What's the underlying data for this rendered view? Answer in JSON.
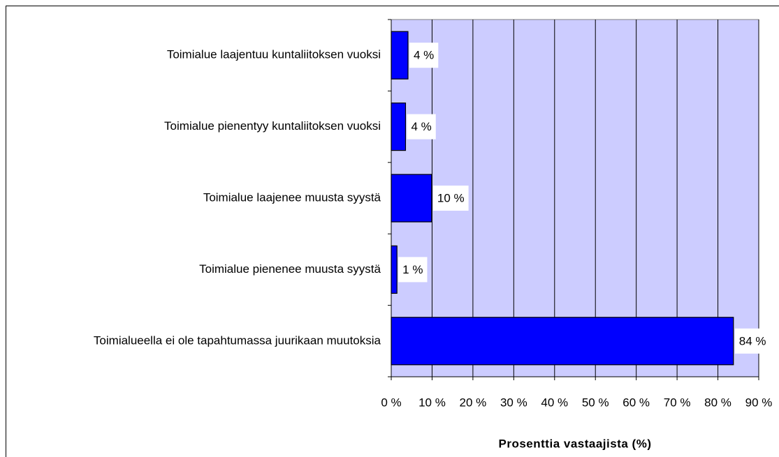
{
  "chart_data": {
    "type": "bar",
    "orientation": "horizontal",
    "categories": [
      "Toimialue laajentuu kuntaliitoksen vuoksi",
      "Toimialue pienentyy kuntaliitoksen vuoksi",
      "Toimialue laajenee muusta syystä",
      "Toimialue pienenee muusta syystä",
      "Toimialueella ei ole tapahtumassa juurikaan muutoksia"
    ],
    "values": [
      4.1,
      3.5,
      9.9,
      1.4,
      83.8
    ],
    "value_labels": [
      "4 %",
      "4 %",
      "10 %",
      "1 %",
      "84 %"
    ],
    "color": "#0000ff",
    "x_label": "Prosenttia vastaajista (%)",
    "xlim": [
      0,
      90
    ],
    "xticks": [
      {
        "value": 0,
        "label": "0 %"
      },
      {
        "value": 10,
        "label": "10 %"
      },
      {
        "value": 20,
        "label": "20 %"
      },
      {
        "value": 30,
        "label": "30 %"
      },
      {
        "value": 40,
        "label": "40 %"
      },
      {
        "value": 50,
        "label": "50 %"
      },
      {
        "value": 60,
        "label": "60 %"
      },
      {
        "value": 70,
        "label": "70 %"
      },
      {
        "value": 80,
        "label": "80 %"
      },
      {
        "value": 90,
        "label": "90 %"
      }
    ],
    "grid": true
  }
}
